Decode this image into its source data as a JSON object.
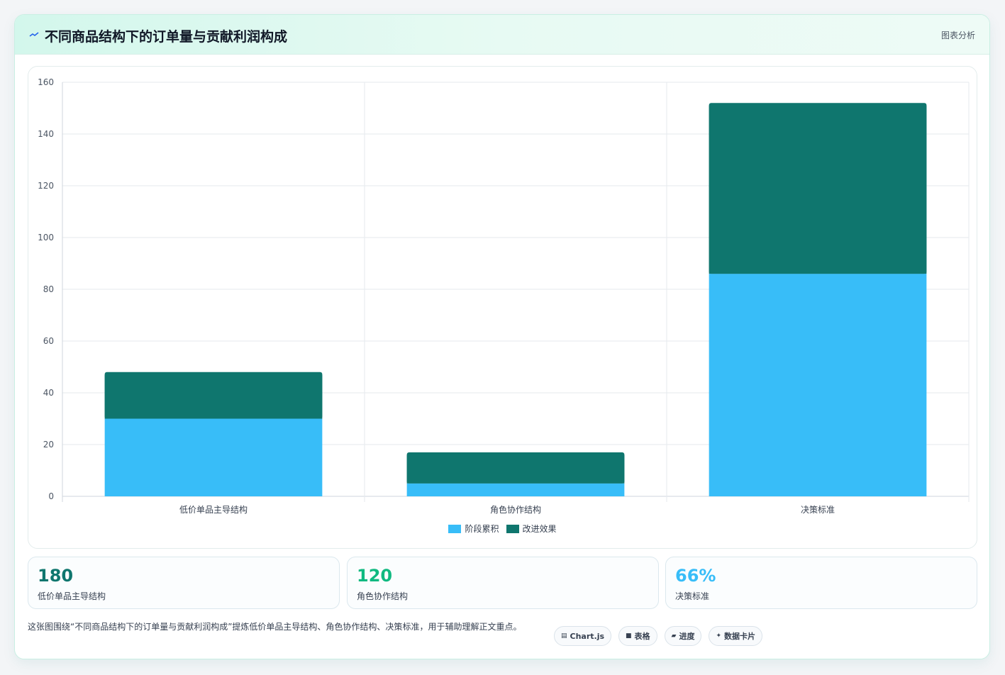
{
  "header": {
    "title": "不同商品结构下的订单量与贡献利润构成",
    "tag": "图表分析",
    "icon": "trend-icon"
  },
  "chart_data": {
    "type": "bar",
    "stacked": true,
    "categories": [
      "低价单品主导结构",
      "角色协作结构",
      "决策标准"
    ],
    "series": [
      {
        "name": "阶段累积",
        "values": [
          30,
          5,
          86
        ],
        "color": "#38bdf8"
      },
      {
        "name": "改进效果",
        "values": [
          18,
          12,
          66
        ],
        "color": "#0f766e"
      }
    ],
    "ylim": [
      0,
      160
    ],
    "yticks": [
      0,
      20,
      40,
      60,
      80,
      100,
      120,
      140,
      160
    ],
    "grid": true,
    "legend_position": "bottom"
  },
  "stats": [
    {
      "value": "180",
      "label": "低价单品主导结构",
      "color": "#0f766e"
    },
    {
      "value": "120",
      "label": "角色协作结构",
      "color": "#10b981"
    },
    {
      "value": "66%",
      "label": "决策标准",
      "color": "#38bdf8"
    }
  ],
  "footnote": "这张图围绕“不同商品结构下的订单量与贡献利润构成”提炼低价单品主导结构、角色协作结构、决策标准，用于辅助理解正文重点。",
  "chips": [
    {
      "icon": "▤",
      "label": "Chart.js",
      "icon_name": "chart-icon"
    },
    {
      "icon": "■",
      "label": "表格",
      "icon_name": "table-icon"
    },
    {
      "icon": "▰",
      "label": "进度",
      "icon_name": "progress-icon"
    },
    {
      "icon": "✦",
      "label": "数据卡片",
      "icon_name": "sparkle-icon"
    }
  ]
}
